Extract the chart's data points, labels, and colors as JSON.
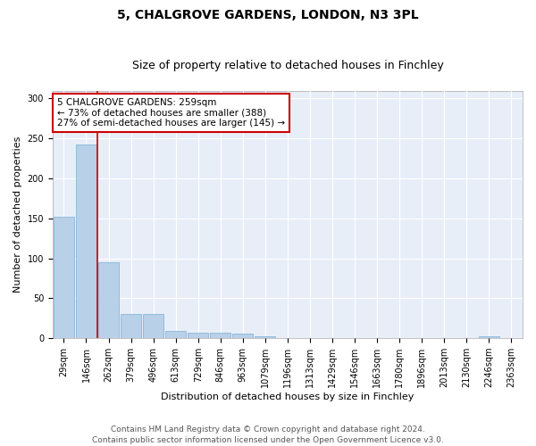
{
  "title": "5, CHALGROVE GARDENS, LONDON, N3 3PL",
  "subtitle": "Size of property relative to detached houses in Finchley",
  "xlabel": "Distribution of detached houses by size in Finchley",
  "ylabel": "Number of detached properties",
  "bar_color": "#b8d0e8",
  "bar_edgecolor": "#7aafd4",
  "bg_color": "#e8eef8",
  "grid_color": "#ffffff",
  "annotation_text": "5 CHALGROVE GARDENS: 259sqm\n← 73% of detached houses are smaller (388)\n27% of semi-detached houses are larger (145) →",
  "annotation_box_color": "#ffffff",
  "annotation_box_edgecolor": "#cc0000",
  "marker_line_color": "#cc0000",
  "bin_labels": [
    "29sqm",
    "146sqm",
    "262sqm",
    "379sqm",
    "496sqm",
    "613sqm",
    "729sqm",
    "846sqm",
    "963sqm",
    "1079sqm",
    "1196sqm",
    "1313sqm",
    "1429sqm",
    "1546sqm",
    "1663sqm",
    "1780sqm",
    "1896sqm",
    "2013sqm",
    "2130sqm",
    "2246sqm",
    "2363sqm"
  ],
  "counts": [
    152,
    243,
    95,
    30,
    30,
    9,
    7,
    7,
    6,
    3,
    0,
    0,
    0,
    0,
    0,
    0,
    0,
    0,
    0,
    3,
    0
  ],
  "ylim": [
    0,
    310
  ],
  "yticks": [
    0,
    50,
    100,
    150,
    200,
    250,
    300
  ],
  "footer_text": "Contains HM Land Registry data © Crown copyright and database right 2024.\nContains public sector information licensed under the Open Government Licence v3.0.",
  "title_fontsize": 10,
  "subtitle_fontsize": 9,
  "xlabel_fontsize": 8,
  "ylabel_fontsize": 8,
  "tick_fontsize": 7,
  "footer_fontsize": 6.5,
  "annotation_fontsize": 7.5
}
